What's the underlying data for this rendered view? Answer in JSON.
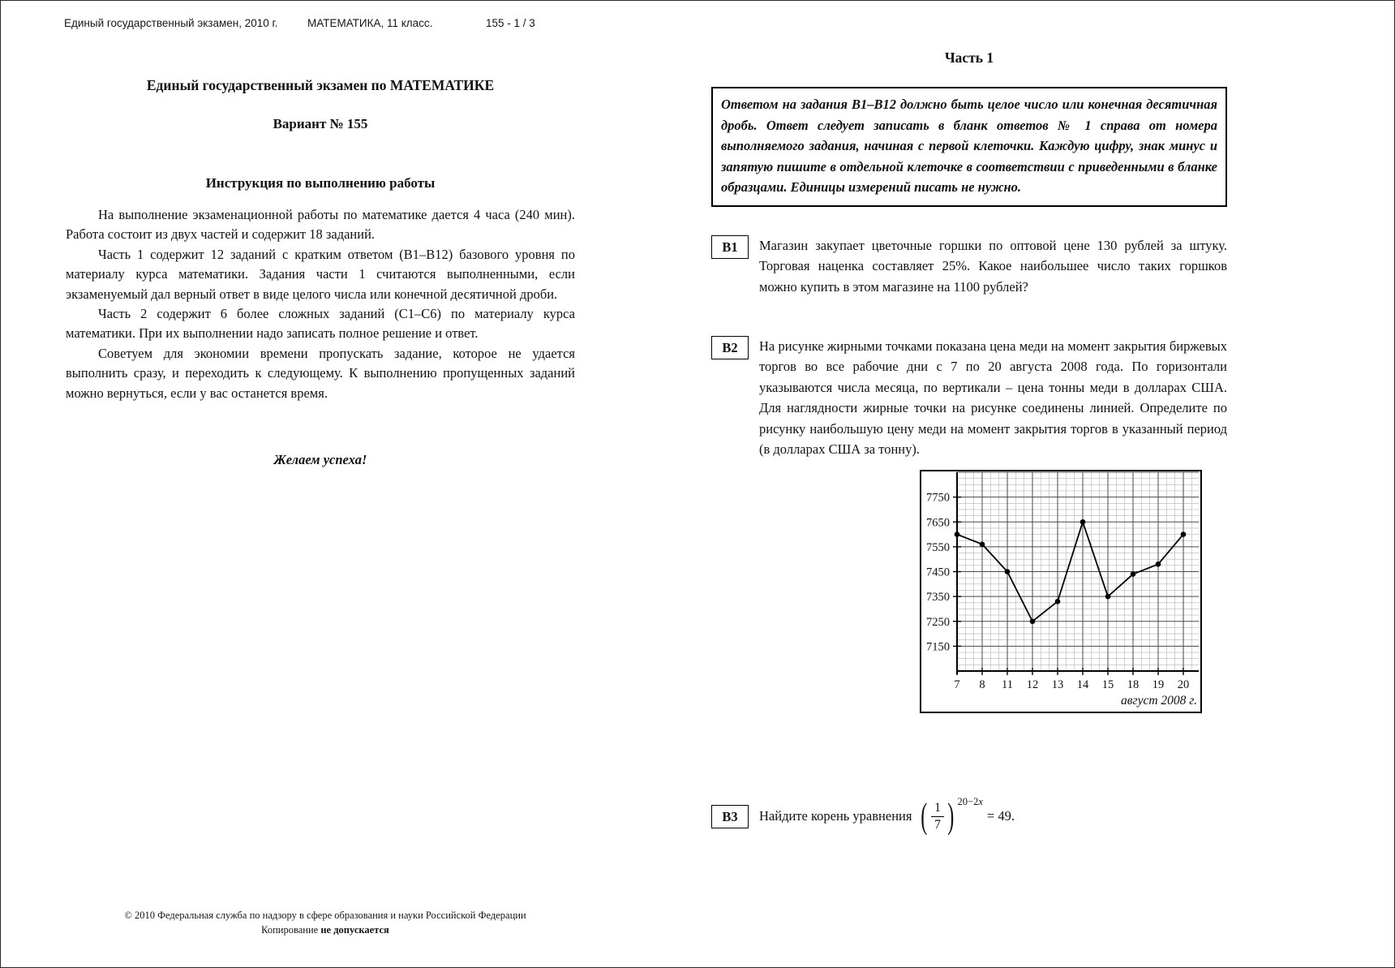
{
  "page_header": {
    "left": "Единый государственный экзамен, 2010 г.",
    "center": "МАТЕМАТИКА, 11 класс.",
    "right": "155 - 1 / 3"
  },
  "left_page": {
    "title": "Единый государственный экзамен по МАТЕМАТИКЕ",
    "variant": "Вариант № 155",
    "instruction_heading": "Инструкция по выполнению работы",
    "paragraphs": [
      "На выполнение экзаменационной работы по математике дается 4 часа (240 мин). Работа состоит из двух частей и содержит 18 заданий.",
      "Часть 1 содержит 12 заданий с кратким ответом (В1–В12) базового уровня по материалу курса математики. Задания части 1 считаются выполненными, если экзаменуемый дал верный ответ в виде целого числа или конечной десятичной дроби.",
      "Часть 2 содержит 6 более сложных заданий (С1–С6) по материалу курса математики. При их выполнении надо записать полное решение и ответ.",
      "Советуем для экономии времени пропускать задание, которое не удается выполнить сразу, и переходить к следующему. К выполнению пропущенных заданий можно вернуться, если у вас останется время."
    ],
    "wish": "Желаем успеха!"
  },
  "right_page": {
    "part_heading": "Часть 1",
    "answer_box": "Ответом на задания В1–В12 должно быть целое число или конечная десятичная дробь. Ответ следует записать в бланк ответов № 1 справа от номера выполняемого задания, начиная с первой клеточки. Каждую цифру, знак минус и запятую пишите в отдельной клеточке в соответствии с приведенными в бланке образцами. Единицы измерений писать не нужно.",
    "problems": {
      "b1": {
        "label": "В1",
        "text": "Магазин закупает цветочные горшки по оптовой цене 130 рублей за штуку. Торговая наценка составляет 25%. Какое наибольшее число таких горшков можно купить в этом магазине на 1100 рублей?"
      },
      "b2": {
        "label": "В2",
        "text": "На рисунке жирными точками показана цена меди на момент закрытия биржевых торгов во все рабочие дни с 7 по 20 августа 2008 года. По горизонтали указываются числа месяца, по вертикали – цена тонны меди в долларах США. Для наглядности жирные точки на рисунке соединены линией. Определите по рисунку наибольшую цену меди на момент закрытия торгов в указанный период (в долларах США за тонну)."
      },
      "b3": {
        "label": "В3",
        "text_before": "Найдите корень уравнения",
        "formula": {
          "open_paren": "(",
          "num": "1",
          "den": "7",
          "exp_pre": "20−2",
          "exp_var": "x",
          "close_paren": ")",
          "rhs": "= 49."
        }
      }
    }
  },
  "chart_data": {
    "type": "line",
    "title": "",
    "xlabel": "август 2008 г.",
    "ylabel": "",
    "x": [
      7,
      8,
      11,
      12,
      13,
      14,
      15,
      18,
      19,
      20
    ],
    "values": [
      7600,
      7560,
      7450,
      7250,
      7330,
      7650,
      7350,
      7440,
      7480,
      7600
    ],
    "yticks": [
      7150,
      7250,
      7350,
      7450,
      7550,
      7650,
      7750
    ],
    "ylim": [
      7050,
      7850
    ],
    "y_minor_step": 25,
    "x_minor_per_interval": 3,
    "grid": true,
    "legend": false,
    "marker_color": "#000000",
    "line_color": "#000000"
  },
  "footer": {
    "line1": "© 2010  Федеральная служба по надзору в сфере образования и науки Российской Федерации",
    "line2_prefix": "Копирование ",
    "line2_bold": "не допускается"
  }
}
